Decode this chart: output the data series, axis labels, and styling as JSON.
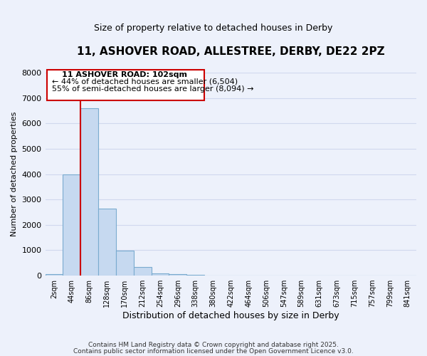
{
  "title": "11, ASHOVER ROAD, ALLESTREE, DERBY, DE22 2PZ",
  "subtitle": "Size of property relative to detached houses in Derby",
  "xlabel": "Distribution of detached houses by size in Derby",
  "ylabel": "Number of detached properties",
  "bar_labels": [
    "2sqm",
    "44sqm",
    "86sqm",
    "128sqm",
    "170sqm",
    "212sqm",
    "254sqm",
    "296sqm",
    "338sqm",
    "380sqm",
    "422sqm",
    "464sqm",
    "506sqm",
    "547sqm",
    "589sqm",
    "631sqm",
    "673sqm",
    "715sqm",
    "757sqm",
    "799sqm",
    "841sqm"
  ],
  "bar_values": [
    50,
    4000,
    6600,
    2650,
    975,
    330,
    100,
    50,
    20,
    0,
    0,
    0,
    0,
    0,
    0,
    0,
    0,
    0,
    0,
    0,
    0
  ],
  "bar_color": "#c6d9f0",
  "bar_edge_color": "#7aabcf",
  "vline_color": "#cc0000",
  "vline_x_index": 1.5,
  "ylim": [
    0,
    8000
  ],
  "yticks": [
    0,
    1000,
    2000,
    3000,
    4000,
    5000,
    6000,
    7000,
    8000
  ],
  "annotation_title": "11 ASHOVER ROAD: 102sqm",
  "annotation_line1": "← 44% of detached houses are smaller (6,504)",
  "annotation_line2": "55% of semi-detached houses are larger (8,094) →",
  "annotation_box_edge_color": "#cc0000",
  "footnote1": "Contains HM Land Registry data © Crown copyright and database right 2025.",
  "footnote2": "Contains public sector information licensed under the Open Government Licence v3.0.",
  "background_color": "#edf1fb",
  "grid_color": "#d0d8ee"
}
